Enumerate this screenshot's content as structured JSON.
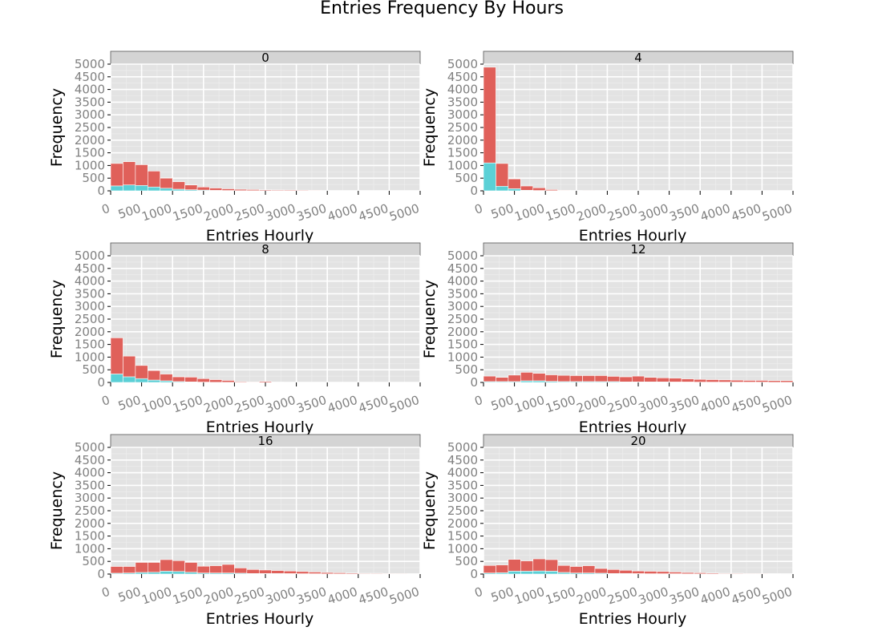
{
  "chart_data": {
    "type": "bar",
    "title": "Entries Frequency By Hours",
    "xlabel": "Entries Hourly",
    "ylabel": "Frequency",
    "xlim": [
      0,
      5000
    ],
    "ylim": [
      0,
      5000
    ],
    "xticks": [
      "0",
      "500",
      "1000",
      "1500",
      "2000",
      "2500",
      "3000",
      "3500",
      "4000",
      "4500",
      "5000"
    ],
    "yticks": [
      "0",
      "500",
      "1000",
      "1500",
      "2000",
      "2500",
      "3000",
      "3500",
      "4000",
      "4500",
      "5000"
    ],
    "bin_width": 200,
    "grid": true,
    "colors": {
      "upper": "#e0605a",
      "lower": "#5bd0d6",
      "panel_bg": "#e3e3e3",
      "strip_bg": "#d4d4d4",
      "grid": "#ffffff"
    },
    "panels": [
      {
        "hour": "0",
        "total": [
          1080,
          1150,
          1030,
          780,
          500,
          360,
          230,
          150,
          110,
          80,
          60,
          50,
          40,
          35,
          30,
          25,
          20,
          0,
          0,
          0,
          0,
          0,
          0,
          0,
          0
        ],
        "lower": [
          190,
          230,
          210,
          150,
          100,
          60,
          40,
          25,
          15,
          10,
          5,
          5,
          5,
          5,
          0,
          0,
          0,
          0,
          0,
          0,
          0,
          0,
          0,
          0,
          0
        ]
      },
      {
        "hour": "4",
        "total": [
          4880,
          1080,
          470,
          190,
          120,
          50,
          20,
          10,
          5,
          0,
          0,
          0,
          0,
          0,
          0,
          0,
          0,
          0,
          0,
          0,
          0,
          0,
          0,
          0,
          0
        ],
        "lower": [
          1100,
          180,
          80,
          20,
          10,
          5,
          0,
          0,
          0,
          0,
          0,
          0,
          0,
          0,
          0,
          0,
          0,
          0,
          0,
          0,
          0,
          0,
          0,
          0,
          0
        ]
      },
      {
        "hour": "8",
        "total": [
          1760,
          1040,
          670,
          470,
          330,
          220,
          210,
          150,
          110,
          80,
          30,
          20,
          40,
          10,
          0,
          0,
          0,
          0,
          0,
          0,
          0,
          0,
          0,
          0,
          0
        ],
        "lower": [
          330,
          220,
          150,
          90,
          60,
          30,
          20,
          10,
          5,
          5,
          0,
          0,
          0,
          0,
          0,
          0,
          0,
          0,
          0,
          0,
          0,
          0,
          0,
          0,
          0
        ]
      },
      {
        "hour": "12",
        "total": [
          250,
          200,
          290,
          400,
          360,
          300,
          280,
          270,
          270,
          270,
          240,
          220,
          250,
          200,
          180,
          170,
          140,
          120,
          110,
          100,
          90,
          80,
          80,
          70,
          70
        ],
        "lower": [
          30,
          30,
          30,
          60,
          60,
          40,
          30,
          30,
          30,
          30,
          30,
          20,
          20,
          20,
          20,
          15,
          15,
          10,
          10,
          10,
          10,
          10,
          10,
          5,
          5
        ]
      },
      {
        "hour": "16",
        "total": [
          300,
          300,
          460,
          460,
          570,
          530,
          460,
          310,
          330,
          380,
          240,
          180,
          160,
          140,
          120,
          100,
          80,
          60,
          50,
          40,
          30,
          30,
          20,
          20,
          15
        ],
        "lower": [
          30,
          40,
          60,
          70,
          110,
          100,
          70,
          40,
          40,
          40,
          30,
          20,
          20,
          20,
          15,
          10,
          10,
          5,
          5,
          5,
          5,
          5,
          0,
          0,
          0
        ]
      },
      {
        "hour": "20",
        "total": [
          340,
          360,
          580,
          520,
          600,
          570,
          340,
          300,
          330,
          220,
          180,
          150,
          120,
          110,
          100,
          80,
          60,
          50,
          40,
          30,
          30,
          20,
          20,
          15,
          10
        ],
        "lower": [
          40,
          50,
          110,
          110,
          120,
          110,
          60,
          40,
          40,
          30,
          20,
          20,
          15,
          10,
          10,
          10,
          5,
          5,
          5,
          5,
          5,
          0,
          0,
          0,
          0
        ]
      }
    ]
  }
}
